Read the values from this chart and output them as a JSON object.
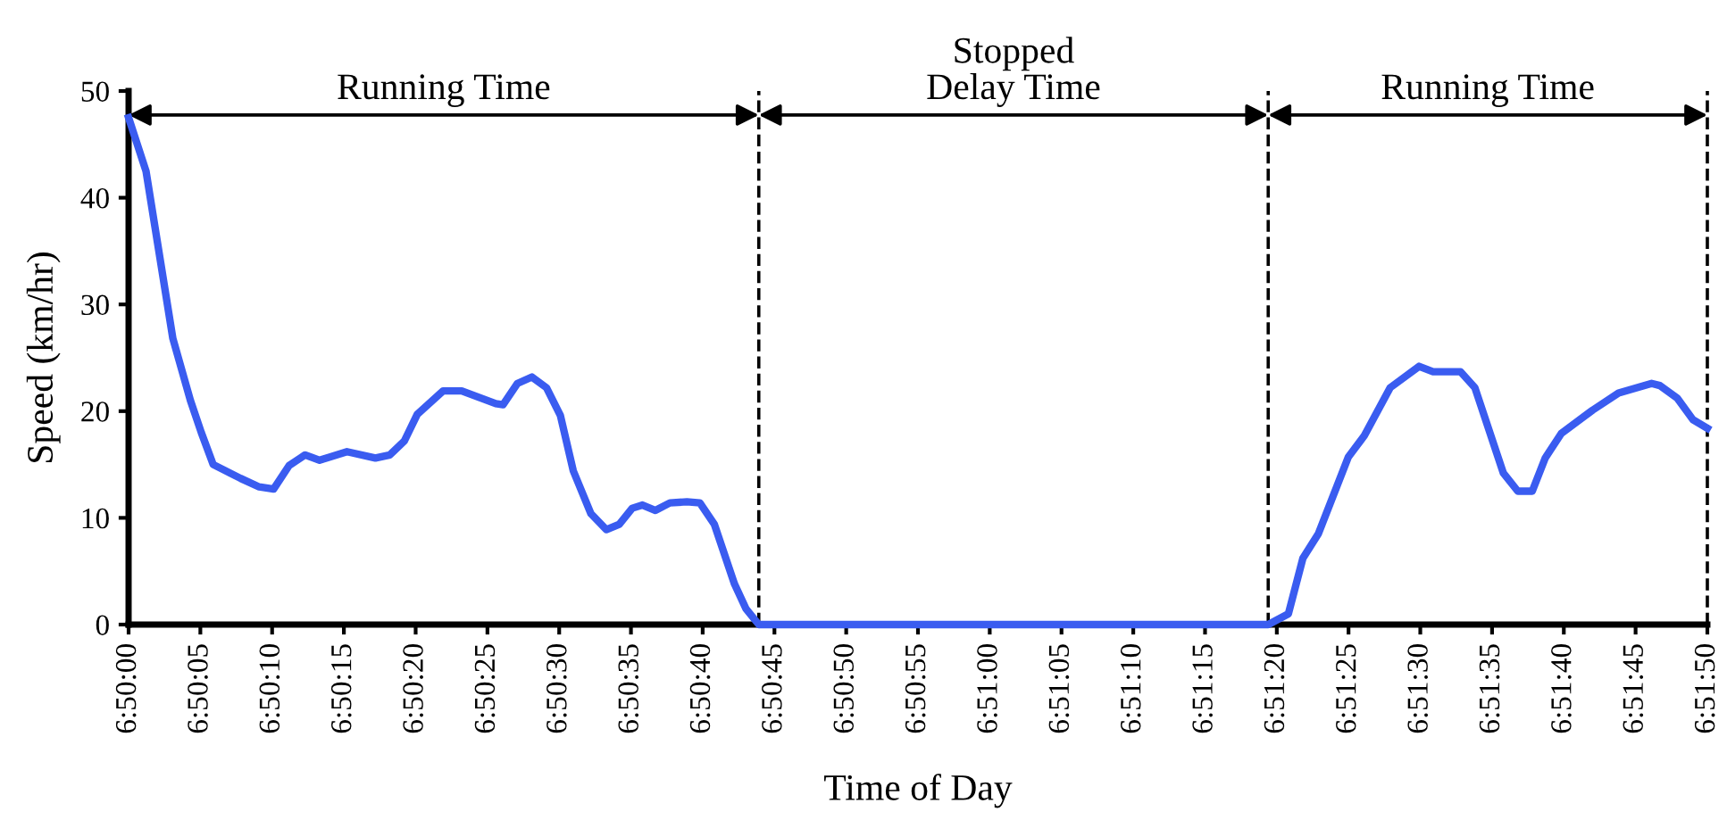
{
  "chart_data": {
    "type": "line",
    "xlabel": "Time of Day",
    "ylabel": "Speed (km/hr)",
    "series": [
      {
        "color": "#3a5cf0",
        "x": [
          6.833333,
          6.83367,
          6.83419,
          6.83453,
          6.83474,
          6.83497,
          6.8355,
          6.83586,
          6.83614,
          6.83644,
          6.83675,
          6.83703,
          6.83756,
          6.83811,
          6.83839,
          6.83867,
          6.83892,
          6.83942,
          6.83978,
          6.84044,
          6.84058,
          6.84086,
          6.84114,
          6.84142,
          6.84169,
          6.84194,
          6.84228,
          6.84258,
          6.84283,
          6.84308,
          6.84328,
          6.84353,
          6.84381,
          6.84414,
          6.84439,
          6.84467,
          6.84506,
          6.84528,
          6.84553,
          6.85539,
          6.85578,
          6.85606,
          6.85636,
          6.85694,
          6.85725,
          6.85775,
          6.85831,
          6.85858,
          6.85911,
          6.85939,
          6.85994,
          6.86022,
          6.8605,
          6.86075,
          6.86106,
          6.86167,
          6.86217,
          6.86281,
          6.86297,
          6.86331,
          6.86361,
          6.863889
        ],
        "values": [
          47.5,
          42.5,
          26.8,
          21,
          18,
          15,
          13.7,
          12.9,
          12.7,
          14.9,
          15.9,
          15.4,
          16.2,
          15.6,
          15.9,
          17.2,
          19.7,
          21.9,
          21.9,
          20.7,
          20.6,
          22.6,
          23.2,
          22.2,
          19.6,
          14.4,
          10.4,
          8.9,
          9.4,
          10.9,
          11.2,
          10.7,
          11.4,
          11.5,
          11.4,
          9.4,
          3.8,
          1.5,
          0,
          0,
          1.0,
          6.2,
          8.5,
          15.7,
          17.7,
          22.2,
          24.2,
          23.7,
          23.7,
          22.2,
          14.2,
          12.5,
          12.5,
          15.6,
          17.9,
          20.1,
          21.7,
          22.6,
          22.4,
          21.2,
          19.2,
          18.4
        ]
      }
    ],
    "xlim": [
      6.833333,
      6.863889
    ],
    "ylim": [
      0,
      50
    ],
    "yticks": [
      0,
      10,
      20,
      30,
      40,
      50
    ],
    "xticks": [
      {
        "value": 6.833333,
        "label": "6:50:00"
      },
      {
        "value": 6.834722,
        "label": "6:50:05"
      },
      {
        "value": 6.836111,
        "label": "6:50:10"
      },
      {
        "value": 6.8375,
        "label": "6:50:15"
      },
      {
        "value": 6.838889,
        "label": "6:50:20"
      },
      {
        "value": 6.840278,
        "label": "6:50:25"
      },
      {
        "value": 6.841667,
        "label": "6:50:30"
      },
      {
        "value": 6.843056,
        "label": "6:50:35"
      },
      {
        "value": 6.844444,
        "label": "6:50:40"
      },
      {
        "value": 6.845833,
        "label": "6:50:45"
      },
      {
        "value": 6.847222,
        "label": "6:50:50"
      },
      {
        "value": 6.848611,
        "label": "6:50:55"
      },
      {
        "value": 6.85,
        "label": "6:51:00"
      },
      {
        "value": 6.851389,
        "label": "6:51:05"
      },
      {
        "value": 6.852778,
        "label": "6:51:10"
      },
      {
        "value": 6.854167,
        "label": "6:51:15"
      },
      {
        "value": 6.855556,
        "label": "6:51:20"
      },
      {
        "value": 6.856944,
        "label": "6:51:25"
      },
      {
        "value": 6.858333,
        "label": "6:51:30"
      },
      {
        "value": 6.859722,
        "label": "6:51:35"
      },
      {
        "value": 6.861111,
        "label": "6:51:40"
      },
      {
        "value": 6.8625,
        "label": "6:51:45"
      },
      {
        "value": 6.863889,
        "label": "6:51:50"
      }
    ],
    "ref_lines": [
      {
        "axis": "x",
        "value": 6.84553,
        "color": "#000000",
        "line_style": "dashed"
      },
      {
        "axis": "x",
        "value": 6.85539,
        "color": "#000000",
        "line_style": "dashed"
      },
      {
        "axis": "x",
        "value": 6.863889,
        "color": "#000000",
        "line_style": "dashed"
      }
    ],
    "annotations": [
      "Running Time",
      "Stopped\nDelay Time",
      "Running Time"
    ],
    "grid": false,
    "legend": false,
    "marker": "none",
    "line_style": "solid"
  }
}
